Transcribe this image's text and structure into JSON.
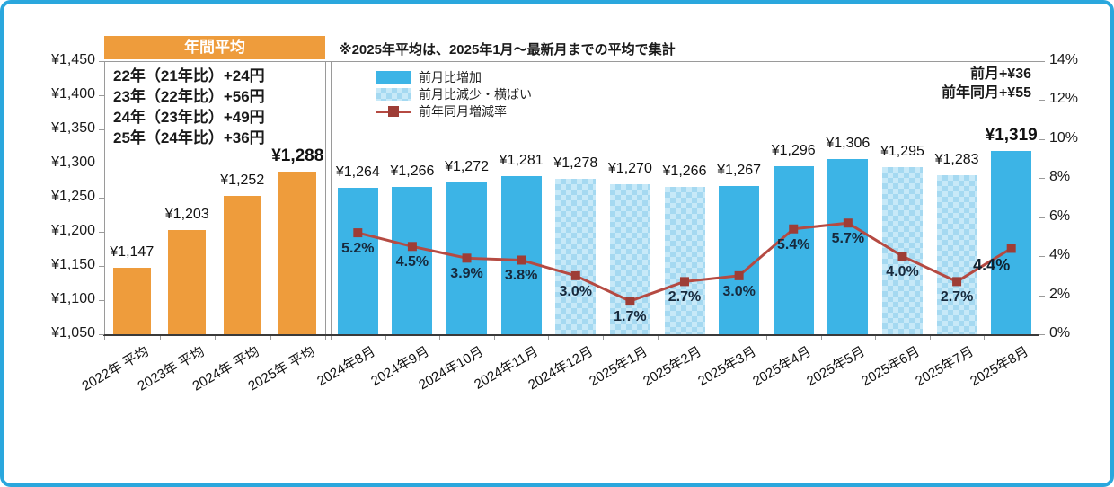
{
  "colors": {
    "card_border": "#2aa7dd",
    "annual_bar": "#ee9c3c",
    "increase_bar": "#3cb4e6",
    "decrease_bar_base": "#c7e9f8",
    "decrease_bar_check": "#a5d9f1",
    "rate_line": "#b54a42",
    "rate_marker": "#9e3d36",
    "axis_line": "#9a9a9a",
    "baseline": "#3a3a3a"
  },
  "annual_panel": {
    "header": "年間平均",
    "diff_lines": [
      "22年（21年比）+24円",
      "23年（22年比）+56円",
      "24年（23年比）+49円",
      "25年（24年比）+36円"
    ]
  },
  "note": "※2025年平均は、2025年1月～最新月までの平均で集計",
  "legend": {
    "increase": "前月比増加",
    "decrease": "前月比減少・横ばい",
    "rate": "前年同月増減率"
  },
  "summary": {
    "prev_month": "前月+¥36",
    "prev_year": "前年同月+¥55"
  },
  "chart_data": {
    "type": "bar+line",
    "left_axis": {
      "unit": "¥",
      "min": 1050,
      "max": 1450,
      "step": 50,
      "ticks": [
        {
          "v": 1450,
          "label": "¥1,450"
        },
        {
          "v": 1400,
          "label": "¥1,400"
        },
        {
          "v": 1350,
          "label": "¥1,350"
        },
        {
          "v": 1300,
          "label": "¥1,300"
        },
        {
          "v": 1250,
          "label": "¥1,250"
        },
        {
          "v": 1200,
          "label": "¥1,200"
        },
        {
          "v": 1150,
          "label": "¥1,150"
        },
        {
          "v": 1100,
          "label": "¥1,100"
        },
        {
          "v": 1050,
          "label": "¥1,050"
        }
      ]
    },
    "right_axis": {
      "unit": "%",
      "min": 0,
      "max": 14,
      "step": 2,
      "ticks": [
        {
          "v": 14,
          "label": "14%"
        },
        {
          "v": 12,
          "label": "12%"
        },
        {
          "v": 10,
          "label": "10%"
        },
        {
          "v": 8,
          "label": "8%"
        },
        {
          "v": 6,
          "label": "6%"
        },
        {
          "v": 4,
          "label": "4%"
        },
        {
          "v": 2,
          "label": "2%"
        },
        {
          "v": 0,
          "label": "0%"
        }
      ]
    },
    "annual": {
      "name": "年間平均",
      "categories": [
        "2022年 平均",
        "2023年 平均",
        "2024年 平均",
        "2025年 平均"
      ],
      "values": [
        1147,
        1203,
        1252,
        1288
      ],
      "labels": [
        "¥1,147",
        "¥1,203",
        "¥1,252",
        "¥1,288"
      ],
      "bold": [
        false,
        false,
        false,
        true
      ]
    },
    "monthly": {
      "categories": [
        "2024年8月",
        "2024年9月",
        "2024年10月",
        "2024年11月",
        "2024年12月",
        "2025年1月",
        "2025年2月",
        "2025年3月",
        "2025年4月",
        "2025年5月",
        "2025年6月",
        "2025年7月",
        "2025年8月"
      ],
      "values": [
        1264,
        1266,
        1272,
        1281,
        1278,
        1270,
        1266,
        1267,
        1296,
        1306,
        1295,
        1283,
        1319
      ],
      "labels": [
        "¥1,264",
        "¥1,266",
        "¥1,272",
        "¥1,281",
        "¥1,278",
        "¥1,270",
        "¥1,266",
        "¥1,267",
        "¥1,296",
        "¥1,306",
        "¥1,295",
        "¥1,283",
        "¥1,319"
      ],
      "styles": [
        "solid",
        "solid",
        "solid",
        "solid",
        "pattern",
        "pattern",
        "pattern",
        "solid",
        "solid",
        "solid",
        "pattern",
        "pattern",
        "solid"
      ],
      "bold": [
        false,
        false,
        false,
        false,
        false,
        false,
        false,
        false,
        false,
        false,
        false,
        false,
        true
      ],
      "rate_name": "前年同月増減率",
      "rate_values": [
        5.2,
        4.5,
        3.9,
        3.8,
        3.0,
        1.7,
        2.7,
        3.0,
        5.4,
        5.7,
        4.0,
        2.7,
        4.4
      ],
      "rate_labels": [
        "5.2%",
        "4.5%",
        "3.9%",
        "3.8%",
        "3.0%",
        "1.7%",
        "2.7%",
        "3.0%",
        "5.4%",
        "5.7%",
        "4.0%",
        "2.7%",
        "4.4%"
      ],
      "rate_bold": [
        false,
        false,
        false,
        false,
        false,
        false,
        false,
        false,
        false,
        false,
        false,
        false,
        true
      ]
    }
  }
}
